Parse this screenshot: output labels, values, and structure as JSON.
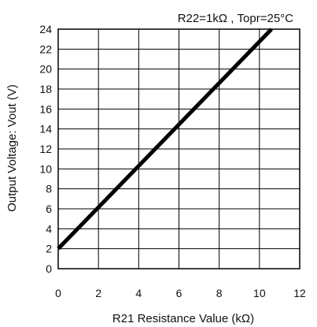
{
  "chart_data": {
    "type": "line",
    "annotation": "R22=1kΩ , Topr=25°C",
    "xlabel": "R21 Resistance Value (kΩ)",
    "ylabel": "Output Voltage: Vout (V)",
    "xlim": [
      0,
      12
    ],
    "ylim": [
      0,
      24
    ],
    "x_ticks": [
      "0",
      "2",
      "4",
      "6",
      "8",
      "10",
      "12"
    ],
    "y_ticks": [
      "0",
      "2",
      "4",
      "6",
      "8",
      "10",
      "12",
      "14",
      "16",
      "18",
      "20",
      "22",
      "24"
    ],
    "grid": true,
    "series": [
      {
        "x": [
          0,
          10.6
        ],
        "y": [
          2,
          24
        ]
      }
    ],
    "colors": {
      "line": "#000000",
      "grid": "#000000",
      "text": "#111111"
    }
  }
}
